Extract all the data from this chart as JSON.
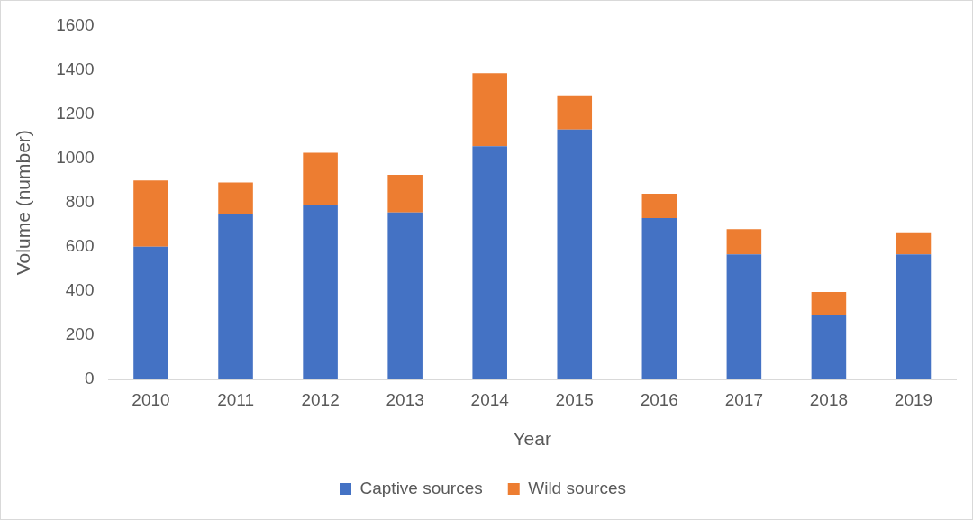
{
  "chart_data": {
    "type": "bar",
    "xlabel": "Year",
    "ylabel": "Volume (number)",
    "categories": [
      "2010",
      "2011",
      "2012",
      "2013",
      "2014",
      "2015",
      "2016",
      "2017",
      "2018",
      "2019"
    ],
    "series": [
      {
        "name": "Captive sources",
        "color": "#4472c4",
        "values": [
          600,
          750,
          790,
          755,
          1055,
          1130,
          730,
          565,
          290,
          565
        ]
      },
      {
        "name": "Wild sources",
        "color": "#ed7d31",
        "values": [
          300,
          140,
          235,
          170,
          330,
          155,
          110,
          115,
          105,
          100
        ]
      }
    ],
    "stacked": true,
    "ylim": [
      0,
      1600
    ],
    "yticks": [
      0,
      200,
      400,
      600,
      800,
      1000,
      1200,
      1400,
      1600
    ],
    "grid": false,
    "legend": "bottom"
  }
}
